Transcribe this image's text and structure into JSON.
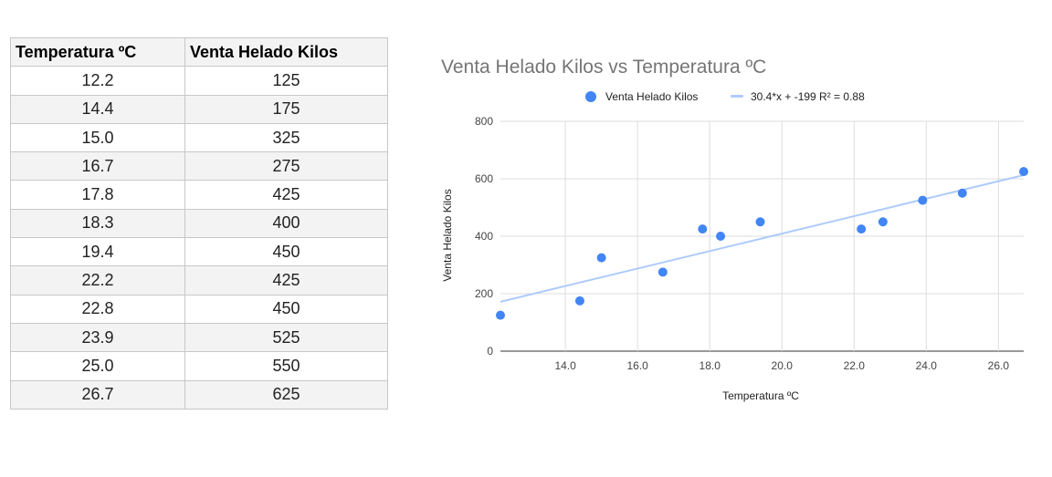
{
  "table": {
    "headers": [
      "Temperatura ºC",
      "Venta Helado Kilos"
    ],
    "rows": [
      [
        "12.2",
        "125"
      ],
      [
        "14.4",
        "175"
      ],
      [
        "15.0",
        "325"
      ],
      [
        "16.7",
        "275"
      ],
      [
        "17.8",
        "425"
      ],
      [
        "18.3",
        "400"
      ],
      [
        "19.4",
        "450"
      ],
      [
        "22.2",
        "425"
      ],
      [
        "22.8",
        "450"
      ],
      [
        "23.9",
        "525"
      ],
      [
        "25.0",
        "550"
      ],
      [
        "26.7",
        "625"
      ]
    ]
  },
  "chart_data": {
    "type": "scatter",
    "title": "Venta Helado Kilos  vs Temperatura ºC",
    "xlabel": "Temperatura ºC",
    "ylabel": "Venta Helado Kilos",
    "xlim": [
      12.2,
      26.7
    ],
    "ylim": [
      0,
      800
    ],
    "xticks": [
      "14.0",
      "16.0",
      "18.0",
      "20.0",
      "22.0",
      "24.0",
      "26.0"
    ],
    "yticks": [
      "0",
      "200",
      "400",
      "600",
      "800"
    ],
    "grid": true,
    "legend_position": "top",
    "series": [
      {
        "name": "Venta Helado Kilos",
        "color": "#4285f4",
        "x": [
          12.2,
          14.4,
          15.0,
          16.7,
          17.8,
          18.3,
          19.4,
          22.2,
          22.8,
          23.9,
          25.0,
          26.7
        ],
        "y": [
          125,
          175,
          325,
          275,
          425,
          400,
          450,
          425,
          450,
          525,
          550,
          625
        ]
      }
    ],
    "trendline": {
      "label": "30.4*x + -199 R² = 0.88",
      "slope": 30.4,
      "intercept": -199,
      "r2": 0.88,
      "color": "#aecbfa"
    }
  }
}
